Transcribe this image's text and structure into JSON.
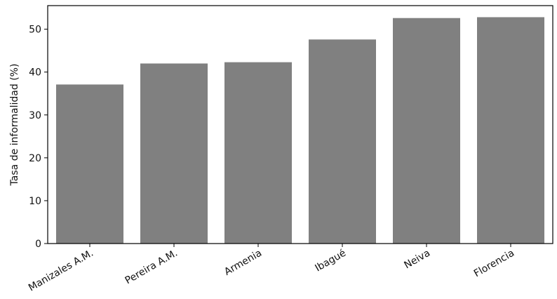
{
  "chart_data": {
    "type": "bar",
    "title": "",
    "xlabel": "",
    "ylabel": "Tasa de informalidad (%)",
    "categories": [
      "Manizales A.M.",
      "Pereira A.M.",
      "Armenia",
      "Ibagué",
      "Neiva",
      "Florencia"
    ],
    "values": [
      37.1,
      42.0,
      42.3,
      47.6,
      52.6,
      52.8
    ],
    "ylim": [
      0,
      55.5
    ],
    "yticks": [
      "0",
      "10",
      "20",
      "30",
      "40",
      "50"
    ],
    "bar_color": "#808080",
    "grid": false,
    "legend": "none"
  }
}
